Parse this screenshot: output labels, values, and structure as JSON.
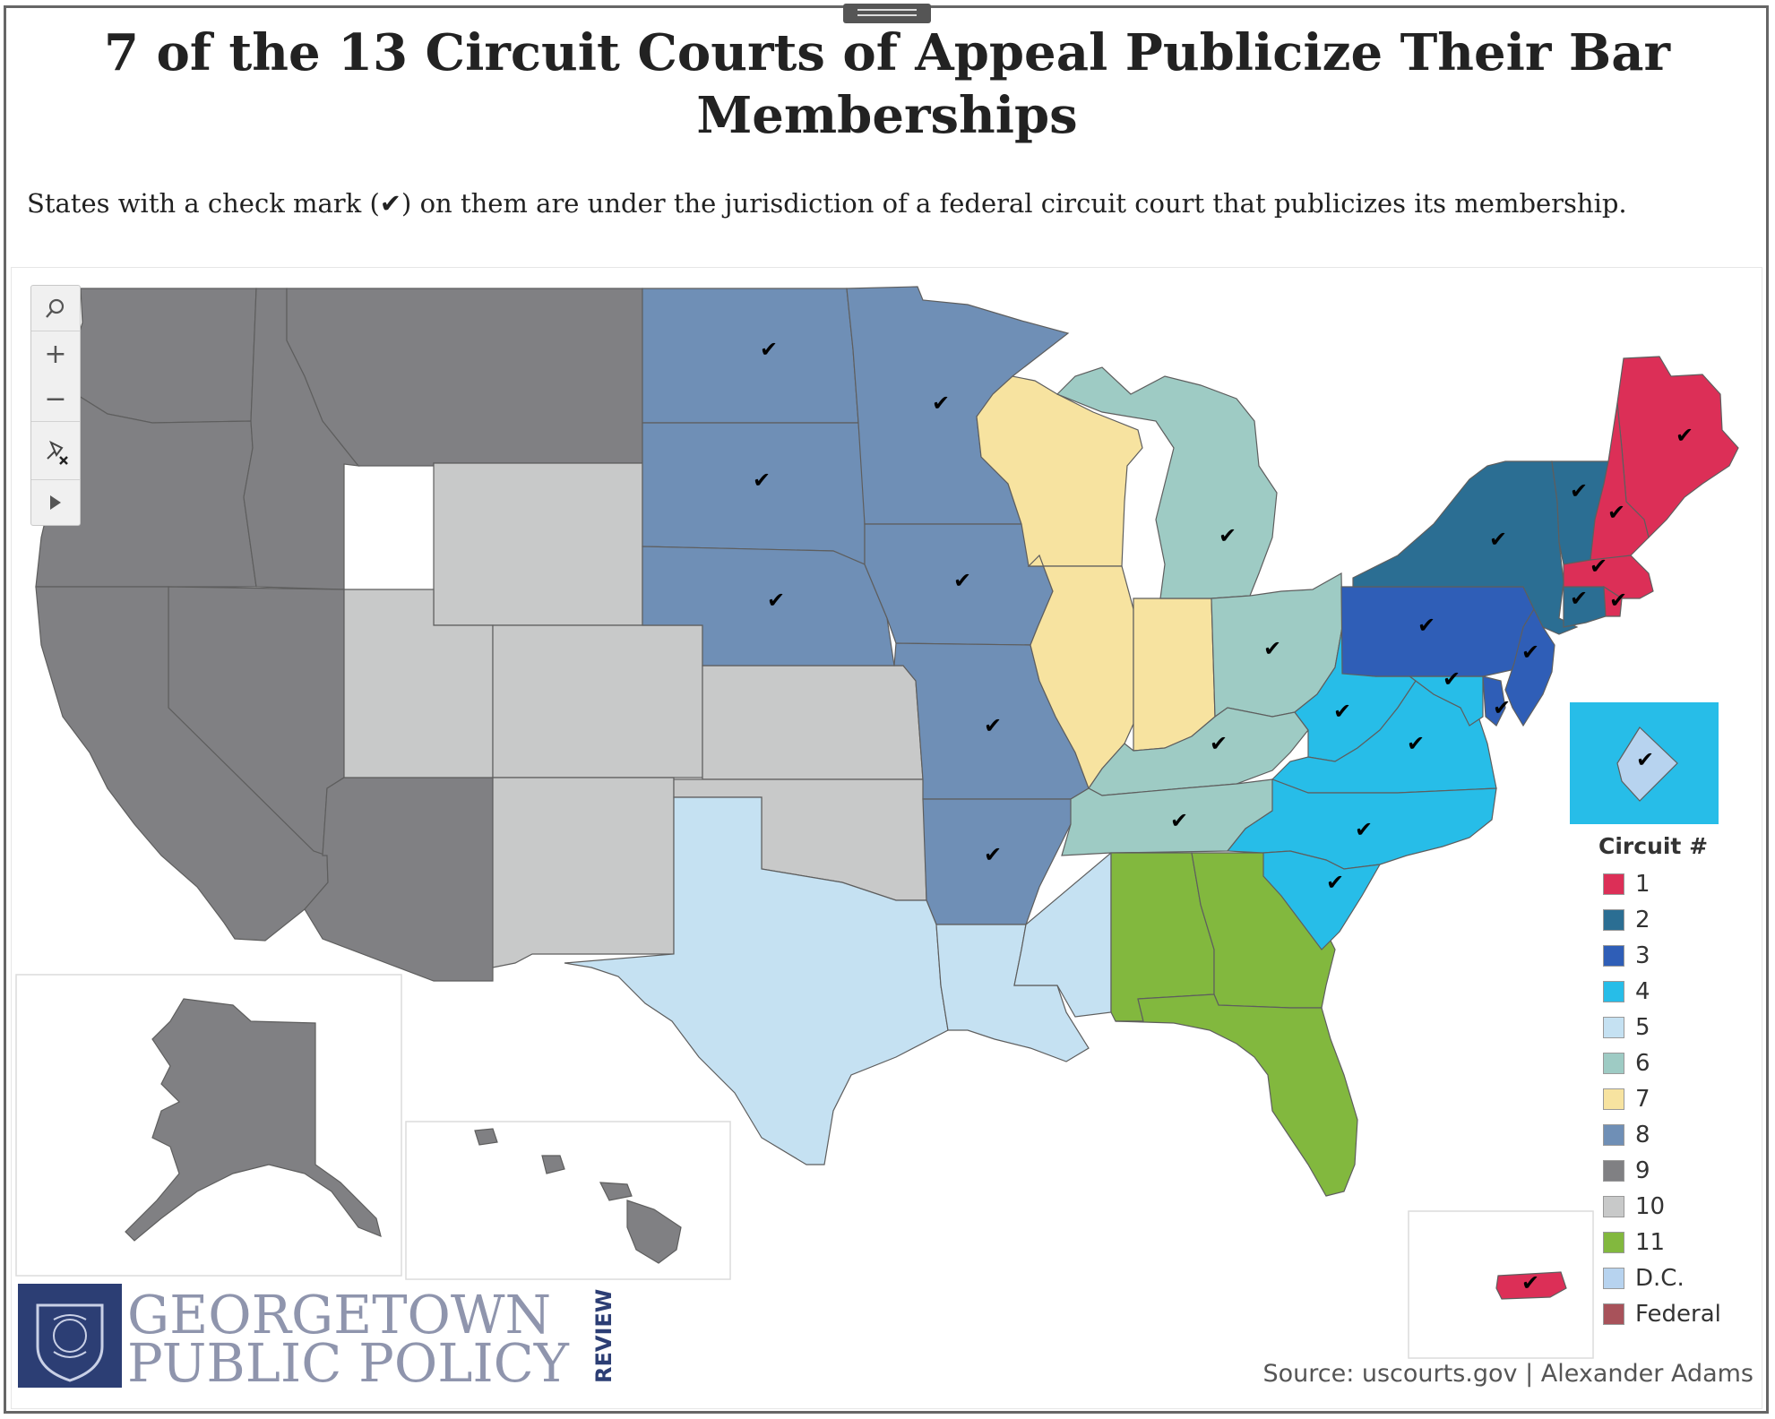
{
  "header": {
    "title": "7 of the 13 Circuit Courts of Appeal Publicize Their Bar Memberships",
    "subtitle": "States with a check mark (✔) on them are under the jurisdiction of a federal circuit court that publicizes its membership."
  },
  "toolbar": {
    "search_icon": "search-icon",
    "zoom_in_label": "+",
    "zoom_out_label": "−",
    "pin_icon": "unpin-icon",
    "expand_icon": "play-icon"
  },
  "check_mark": "✔",
  "circuit_colors": {
    "1": "#dc2f57",
    "2": "#2b6e93",
    "3": "#2f5eb7",
    "4": "#27bde8",
    "5": "#c5e1f2",
    "6": "#9ecbc4",
    "7": "#f7e3a0",
    "8": "#6f8fb6",
    "9": "#808083",
    "10": "#c8c9c9",
    "11": "#82b83e",
    "D.C.": "#b7d3ef",
    "Federal": "#a8525a"
  },
  "states": [
    {
      "name": "Washington",
      "circuit": "9",
      "check": false
    },
    {
      "name": "Oregon",
      "circuit": "9",
      "check": false
    },
    {
      "name": "California",
      "circuit": "9",
      "check": false
    },
    {
      "name": "Idaho",
      "circuit": "9",
      "check": false
    },
    {
      "name": "Nevada",
      "circuit": "9",
      "check": false
    },
    {
      "name": "Montana",
      "circuit": "9",
      "check": false
    },
    {
      "name": "Arizona",
      "circuit": "9",
      "check": false
    },
    {
      "name": "Alaska",
      "circuit": "9",
      "check": false
    },
    {
      "name": "Hawaii",
      "circuit": "9",
      "check": false
    },
    {
      "name": "Wyoming",
      "circuit": "10",
      "check": false
    },
    {
      "name": "Utah",
      "circuit": "10",
      "check": false
    },
    {
      "name": "Colorado",
      "circuit": "10",
      "check": false
    },
    {
      "name": "Kansas",
      "circuit": "10",
      "check": false
    },
    {
      "name": "New Mexico",
      "circuit": "10",
      "check": false
    },
    {
      "name": "Oklahoma",
      "circuit": "10",
      "check": false
    },
    {
      "name": "North Dakota",
      "circuit": "8",
      "check": true
    },
    {
      "name": "South Dakota",
      "circuit": "8",
      "check": true
    },
    {
      "name": "Nebraska",
      "circuit": "8",
      "check": true
    },
    {
      "name": "Minnesota",
      "circuit": "8",
      "check": true
    },
    {
      "name": "Iowa",
      "circuit": "8",
      "check": true
    },
    {
      "name": "Missouri",
      "circuit": "8",
      "check": true
    },
    {
      "name": "Arkansas",
      "circuit": "8",
      "check": true
    },
    {
      "name": "Texas",
      "circuit": "5",
      "check": false
    },
    {
      "name": "Louisiana",
      "circuit": "5",
      "check": false
    },
    {
      "name": "Mississippi",
      "circuit": "5",
      "check": false
    },
    {
      "name": "Wisconsin",
      "circuit": "7",
      "check": false
    },
    {
      "name": "Illinois",
      "circuit": "7",
      "check": false
    },
    {
      "name": "Indiana",
      "circuit": "7",
      "check": false
    },
    {
      "name": "Michigan",
      "circuit": "6",
      "check": true
    },
    {
      "name": "Ohio",
      "circuit": "6",
      "check": true
    },
    {
      "name": "Kentucky",
      "circuit": "6",
      "check": true
    },
    {
      "name": "Tennessee",
      "circuit": "6",
      "check": true
    },
    {
      "name": "Alabama",
      "circuit": "11",
      "check": false
    },
    {
      "name": "Georgia",
      "circuit": "11",
      "check": false
    },
    {
      "name": "Florida",
      "circuit": "11",
      "check": false
    },
    {
      "name": "West Virginia",
      "circuit": "4",
      "check": true
    },
    {
      "name": "Virginia",
      "circuit": "4",
      "check": true
    },
    {
      "name": "Maryland",
      "circuit": "4",
      "check": true
    },
    {
      "name": "North Carolina",
      "circuit": "4",
      "check": true
    },
    {
      "name": "South Carolina",
      "circuit": "4",
      "check": true
    },
    {
      "name": "Pennsylvania",
      "circuit": "3",
      "check": true
    },
    {
      "name": "New Jersey",
      "circuit": "3",
      "check": true
    },
    {
      "name": "Delaware",
      "circuit": "3",
      "check": true
    },
    {
      "name": "New York",
      "circuit": "2",
      "check": true
    },
    {
      "name": "Vermont",
      "circuit": "2",
      "check": true
    },
    {
      "name": "Connecticut",
      "circuit": "2",
      "check": true
    },
    {
      "name": "Maine",
      "circuit": "1",
      "check": true
    },
    {
      "name": "New Hampshire",
      "circuit": "1",
      "check": true
    },
    {
      "name": "Massachusetts",
      "circuit": "1",
      "check": true
    },
    {
      "name": "Rhode Island",
      "circuit": "1",
      "check": true
    },
    {
      "name": "Puerto Rico",
      "circuit": "1",
      "check": true
    },
    {
      "name": "District of Columbia",
      "circuit": "D.C.",
      "check": true
    }
  ],
  "legend": {
    "title": "Circuit #",
    "items": [
      "1",
      "2",
      "3",
      "4",
      "5",
      "6",
      "7",
      "8",
      "9",
      "10",
      "11",
      "D.C.",
      "Federal"
    ]
  },
  "source": "Source: uscourts.gov | Alexander Adams",
  "logo": {
    "line1": "GEORGETOWN",
    "line2": "PUBLIC POLICY",
    "review": "REVIEW"
  }
}
